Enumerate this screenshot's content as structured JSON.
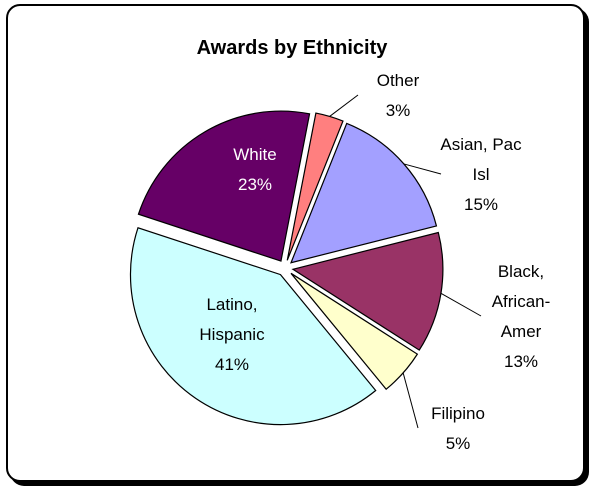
{
  "chart_data": {
    "type": "pie",
    "title": "Awards by Ethnicity",
    "slices": [
      {
        "label_lines": [
          "Other"
        ],
        "pct_label": "3%",
        "value": 3,
        "color": "#FF7F7F"
      },
      {
        "label_lines": [
          "Asian, Pac",
          "Isl"
        ],
        "pct_label": "15%",
        "value": 15,
        "color": "#A3A0FF"
      },
      {
        "label_lines": [
          "Black,",
          "African-",
          "Amer"
        ],
        "pct_label": "13%",
        "value": 13,
        "color": "#993366"
      },
      {
        "label_lines": [
          "Filipino"
        ],
        "pct_label": "5%",
        "value": 5,
        "color": "#FFFFCC"
      },
      {
        "label_lines": [
          "Latino,",
          "Hispanic"
        ],
        "pct_label": "41%",
        "value": 41,
        "color": "#CCFFFF"
      },
      {
        "label_lines": [
          "White"
        ],
        "pct_label": "23%",
        "value": 23,
        "color": "#660066"
      }
    ],
    "legend": false
  }
}
